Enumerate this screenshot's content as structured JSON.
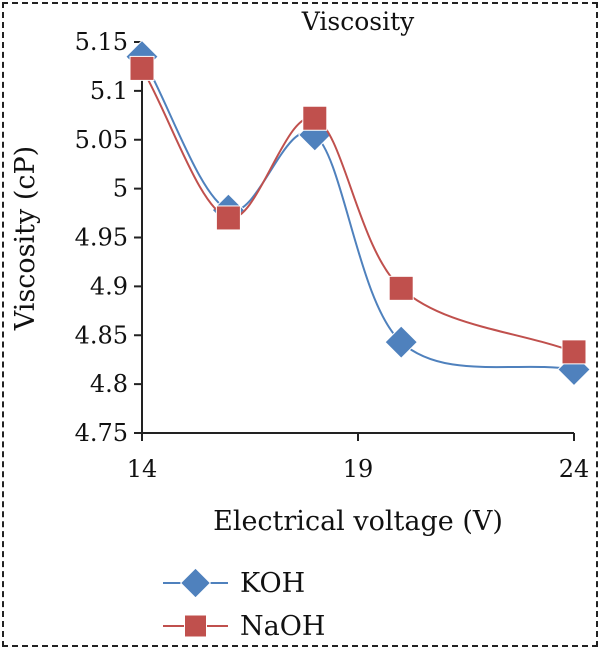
{
  "chart_data": {
    "type": "line",
    "title": "Viscosity",
    "xlabel": "Electrical voltage (V)",
    "ylabel": "Viscosity (cP)",
    "xlim": [
      14,
      24
    ],
    "ylim": [
      4.75,
      5.15
    ],
    "xticks": [
      14,
      19,
      24
    ],
    "xtick_labels": [
      "14",
      "19",
      "24"
    ],
    "yticks": [
      4.75,
      4.8,
      4.85,
      4.9,
      4.95,
      5.0,
      5.05,
      5.1,
      5.15
    ],
    "ytick_labels": [
      "4.75",
      "4.8",
      "4.85",
      "4.9",
      "4.95",
      "5",
      "5.05",
      "5.1",
      "5.15"
    ],
    "grid": false,
    "legend_position": "bottom-left",
    "series": [
      {
        "name": "KOH",
        "marker": "diamond",
        "color": "#4F81BD",
        "x": [
          14,
          16,
          18,
          20,
          24
        ],
        "values": [
          5.135,
          4.978,
          5.055,
          4.843,
          4.815
        ]
      },
      {
        "name": "NaOH",
        "marker": "square",
        "color": "#C0504D",
        "x": [
          14,
          16,
          18,
          20,
          24
        ],
        "values": [
          5.123,
          4.97,
          5.072,
          4.898,
          4.833
        ]
      }
    ]
  }
}
